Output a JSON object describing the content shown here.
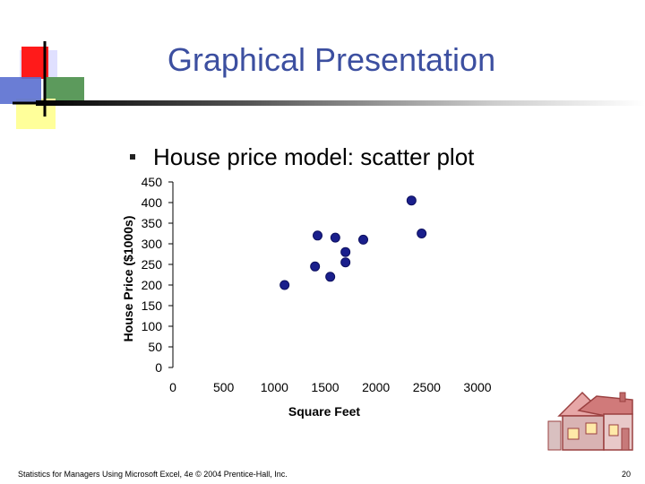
{
  "slide": {
    "title": "Graphical Presentation",
    "bullet": "House price model:  scatter plot"
  },
  "footer": {
    "left": "Statistics for Managers Using Microsoft Excel, 4e © 2004 Prentice-Hall, Inc.",
    "page": "20"
  },
  "colors": {
    "title": "#3c4fa0",
    "marker": "#1a1f8c"
  },
  "chart_data": {
    "type": "scatter",
    "xlabel": "Square Feet",
    "ylabel": "House Price ($1000s)",
    "xlim": [
      0,
      3000
    ],
    "ylim": [
      0,
      450
    ],
    "x_ticks": [
      "0",
      "500",
      "1000",
      "1500",
      "2000",
      "2500",
      "3000"
    ],
    "y_ticks": [
      "0",
      "50",
      "100",
      "150",
      "200",
      "250",
      "300",
      "350",
      "400",
      "450"
    ],
    "grid": false,
    "points": [
      {
        "x": 1100,
        "y": 200
      },
      {
        "x": 1400,
        "y": 245
      },
      {
        "x": 1425,
        "y": 320
      },
      {
        "x": 1550,
        "y": 220
      },
      {
        "x": 1600,
        "y": 315
      },
      {
        "x": 1700,
        "y": 280
      },
      {
        "x": 1700,
        "y": 255
      },
      {
        "x": 1875,
        "y": 310
      },
      {
        "x": 2350,
        "y": 405
      },
      {
        "x": 2450,
        "y": 325
      }
    ]
  }
}
